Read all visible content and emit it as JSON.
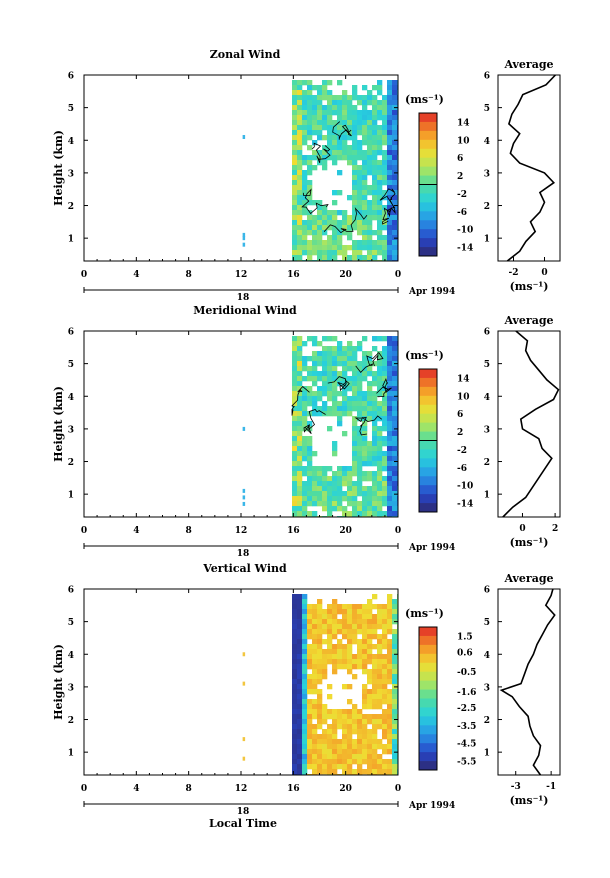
{
  "chart_data": [
    {
      "type": "heatmap",
      "title": "Zonal Wind",
      "ylabel": "Height (km)",
      "yticks": [
        "1",
        "2",
        "3",
        "4",
        "5",
        "6"
      ],
      "ylim": [
        0.3,
        6.0
      ],
      "xticks": [
        "0",
        "4",
        "8",
        "12",
        "16",
        "20",
        "0"
      ],
      "xlim": [
        0,
        24
      ],
      "date_label": "Apr 1994",
      "day_label": "18",
      "colorbar": {
        "unit": "(ms⁻¹)",
        "ticks": [
          "14",
          "10",
          "6",
          "2",
          "-2",
          "-6",
          "-10",
          "-14"
        ],
        "range": [
          -16,
          16
        ],
        "zero_line": 0
      },
      "data_extent": {
        "start_hour": 15.9,
        "end_hour": 24
      },
      "profile": {
        "title": "Average",
        "xlabel": "(ms⁻¹)",
        "xticks": [
          "-2",
          "0"
        ],
        "xlim": [
          -3,
          1
        ],
        "heights": [
          0.3,
          0.6,
          0.9,
          1.2,
          1.5,
          1.8,
          2.1,
          2.4,
          2.7,
          3.0,
          3.3,
          3.6,
          3.9,
          4.2,
          4.5,
          4.8,
          5.1,
          5.4,
          5.7,
          6.0
        ],
        "values": [
          -2.4,
          -1.6,
          -1.2,
          -0.6,
          -0.9,
          -0.3,
          0.0,
          -0.3,
          0.6,
          0.0,
          -1.6,
          -2.2,
          -2.0,
          -1.6,
          -2.3,
          -2.1,
          -1.7,
          -1.4,
          0.1,
          0.7
        ]
      },
      "spot_data": [
        {
          "hour": 12.2,
          "heights": [
            4.1
          ]
        },
        {
          "hour": 12.2,
          "heights": [
            0.8,
            1.0,
            1.1
          ]
        }
      ]
    },
    {
      "type": "heatmap",
      "title": "Meridional Wind",
      "ylabel": "Height (km)",
      "yticks": [
        "1",
        "2",
        "3",
        "4",
        "5",
        "6"
      ],
      "ylim": [
        0.3,
        6.0
      ],
      "xticks": [
        "0",
        "4",
        "8",
        "12",
        "16",
        "20",
        "0"
      ],
      "xlim": [
        0,
        24
      ],
      "date_label": "Apr 1994",
      "day_label": "18",
      "colorbar": {
        "unit": "(ms⁻¹)",
        "ticks": [
          "14",
          "10",
          "6",
          "2",
          "-2",
          "-6",
          "-10",
          "-14"
        ],
        "range": [
          -16,
          16
        ],
        "zero_line": 0
      },
      "data_extent": {
        "start_hour": 15.9,
        "end_hour": 24
      },
      "profile": {
        "title": "Average",
        "xlabel": "(ms⁻¹)",
        "xticks": [
          "0",
          "2"
        ],
        "xlim": [
          -1.5,
          2.3
        ],
        "heights": [
          0.3,
          0.6,
          0.9,
          1.2,
          1.5,
          1.8,
          2.1,
          2.4,
          2.7,
          3.0,
          3.3,
          3.6,
          3.9,
          4.2,
          4.5,
          4.8,
          5.1,
          5.4,
          5.7,
          6.0
        ],
        "values": [
          -1.2,
          -0.6,
          0.2,
          0.6,
          1.0,
          1.4,
          1.8,
          1.2,
          1.0,
          0.0,
          -0.1,
          0.8,
          1.9,
          2.2,
          1.5,
          1.0,
          0.5,
          0.2,
          0.3,
          -0.4
        ]
      },
      "spot_data": [
        {
          "hour": 12.2,
          "heights": [
            3.0
          ]
        },
        {
          "hour": 12.2,
          "heights": [
            0.7,
            0.9,
            1.1
          ]
        }
      ]
    },
    {
      "type": "heatmap",
      "title": "Vertical Wind",
      "ylabel": "Height (km)",
      "xlabel": "Local Time",
      "yticks": [
        "1",
        "2",
        "3",
        "4",
        "5",
        "6"
      ],
      "ylim": [
        0.3,
        6.0
      ],
      "xticks": [
        "0",
        "4",
        "8",
        "12",
        "16",
        "20",
        "0"
      ],
      "xlim": [
        0,
        24
      ],
      "date_label": "Apr 1994",
      "day_label": "18",
      "colorbar": {
        "unit": "(ms⁻¹)",
        "ticks": [
          "1.5",
          "0.6",
          "-0.5",
          "-1.6",
          "-2.5",
          "-3.5",
          "-4.5",
          "-5.5"
        ],
        "range": [
          -6.0,
          2.0
        ]
      },
      "data_extent": {
        "start_hour": 15.9,
        "end_hour": 24
      },
      "profile": {
        "title": "Average",
        "xlabel": "(ms⁻¹)",
        "xticks": [
          "-3",
          "-1"
        ],
        "xlim": [
          -4,
          -0.5
        ],
        "heights": [
          0.3,
          0.6,
          0.9,
          1.2,
          1.5,
          1.8,
          2.1,
          2.4,
          2.7,
          2.9,
          3.1,
          3.4,
          3.7,
          4.0,
          4.3,
          4.6,
          4.9,
          5.2,
          5.5,
          5.8,
          6.0
        ],
        "values": [
          -1.6,
          -2.0,
          -1.7,
          -1.6,
          -2.0,
          -2.2,
          -2.3,
          -2.8,
          -3.2,
          -3.8,
          -2.7,
          -2.5,
          -2.3,
          -2.0,
          -1.8,
          -1.5,
          -1.2,
          -0.8,
          -1.3,
          -1.0,
          -0.9
        ]
      },
      "spot_data": [
        {
          "hour": 12.2,
          "heights": [
            4.0
          ]
        },
        {
          "hour": 12.2,
          "heights": [
            3.1
          ]
        },
        {
          "hour": 12.2,
          "heights": [
            1.4
          ]
        },
        {
          "hour": 12.2,
          "heights": [
            0.8
          ]
        }
      ]
    }
  ]
}
